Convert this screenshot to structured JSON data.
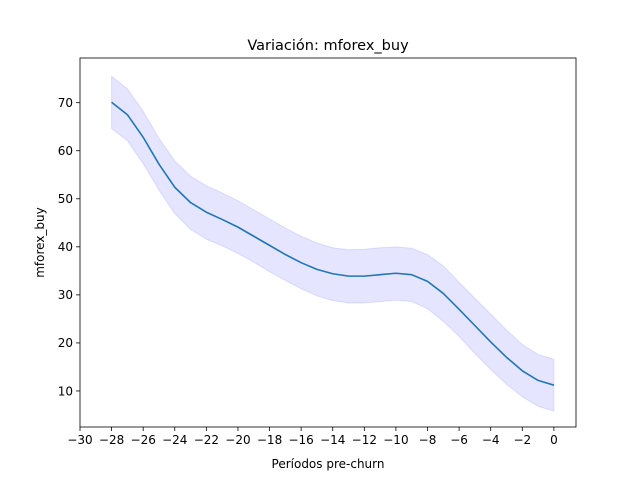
{
  "chart_data": {
    "type": "line",
    "title": "Variación: mforex_buy",
    "xlabel": "Períodos pre-churn",
    "ylabel": "mforex_buy",
    "xlim": [
      -30,
      1.4
    ],
    "ylim": [
      2.5,
      79.3
    ],
    "xticks": [
      -30,
      -28,
      -26,
      -24,
      -22,
      -20,
      -18,
      -16,
      -14,
      -12,
      -10,
      -8,
      -6,
      -4,
      -2,
      0
    ],
    "xtick_labels": [
      "−30",
      "−28",
      "−26",
      "−24",
      "−22",
      "−20",
      "−18",
      "−16",
      "−14",
      "−12",
      "−10",
      "−8",
      "−6",
      "−4",
      "−2",
      "0"
    ],
    "yticks": [
      10,
      20,
      30,
      40,
      50,
      60,
      70
    ],
    "ytick_labels": [
      "10",
      "20",
      "30",
      "40",
      "50",
      "60",
      "70"
    ],
    "grid": false,
    "colors": {
      "line": "#1f77b4",
      "band": "#0000ff",
      "band_opacity": 0.1
    },
    "series": [
      {
        "x": [
          -28,
          -27,
          -26,
          -25,
          -24,
          -23,
          -22,
          -21,
          -20,
          -19,
          -18,
          -17,
          -16,
          -15,
          -14,
          -13,
          -12,
          -11,
          -10,
          -9,
          -8,
          -7,
          -6,
          -5,
          -4,
          -3,
          -2,
          -1,
          0
        ],
        "y": [
          70.1,
          67.5,
          62.8,
          57.2,
          52.4,
          49.2,
          47.2,
          45.7,
          44.1,
          42.2,
          40.3,
          38.4,
          36.7,
          35.3,
          34.4,
          33.9,
          33.9,
          34.2,
          34.5,
          34.2,
          32.8,
          30.3,
          27.0,
          23.6,
          20.2,
          17.0,
          14.2,
          12.2,
          11.2
        ],
        "lower": [
          64.6,
          62.1,
          57.3,
          51.8,
          46.9,
          43.6,
          41.6,
          40.2,
          38.6,
          36.8,
          34.8,
          33.0,
          31.3,
          29.8,
          28.8,
          28.3,
          28.3,
          28.6,
          28.9,
          28.6,
          27.1,
          24.5,
          21.3,
          17.8,
          14.5,
          11.4,
          8.8,
          6.8,
          5.8
        ],
        "upper": [
          75.5,
          72.9,
          68.2,
          62.6,
          57.9,
          54.7,
          52.7,
          51.2,
          49.6,
          47.7,
          45.8,
          43.9,
          42.2,
          40.8,
          39.8,
          39.4,
          39.5,
          39.8,
          40.0,
          39.7,
          38.4,
          36.0,
          32.6,
          29.3,
          26.0,
          22.7,
          19.7,
          17.6,
          16.6
        ]
      }
    ]
  }
}
